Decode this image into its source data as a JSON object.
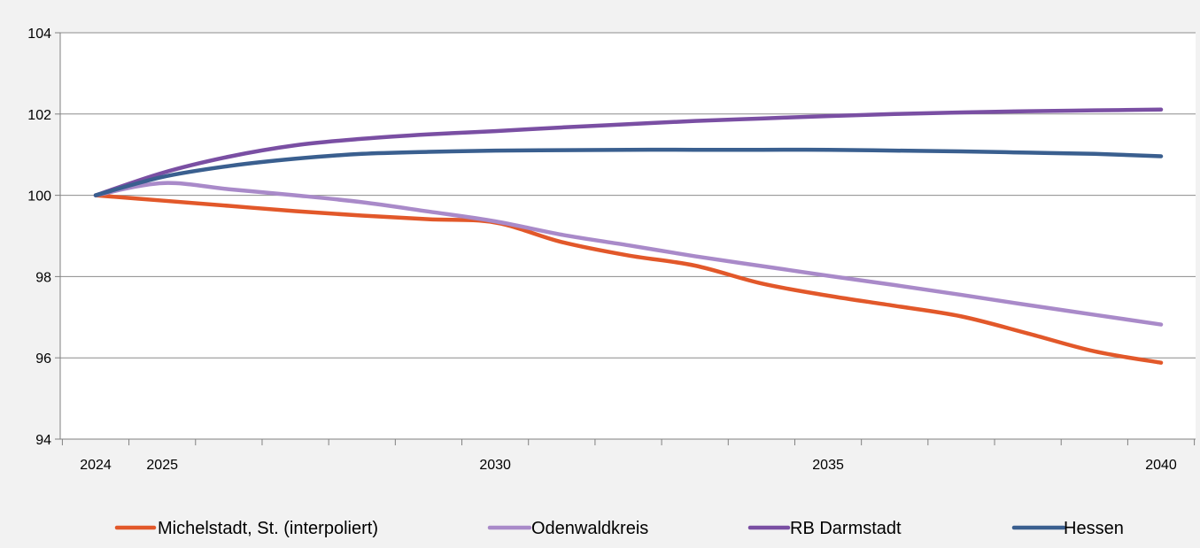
{
  "chart_data": {
    "type": "line",
    "title": "",
    "xlabel": "",
    "ylabel": "",
    "x": [
      2024,
      2025,
      2026,
      2027,
      2028,
      2029,
      2030,
      2031,
      2032,
      2033,
      2034,
      2035,
      2036,
      2037,
      2038,
      2039,
      2040
    ],
    "x_tick_labels": [
      "2024",
      "2025",
      "2030",
      "2035",
      "2040"
    ],
    "x_tick_values": [
      2024,
      2025,
      2030,
      2035,
      2040
    ],
    "ylim": [
      94,
      104
    ],
    "y_ticks": [
      94,
      96,
      98,
      100,
      102,
      104
    ],
    "grid": "horizontal",
    "legend_position": "bottom",
    "series": [
      {
        "name": "Michelstadt, St. (interpoliert)",
        "color": "#e2582a",
        "values": [
          100.0,
          99.87,
          99.74,
          99.61,
          99.5,
          99.41,
          99.33,
          98.85,
          98.52,
          98.27,
          97.83,
          97.53,
          97.28,
          97.02,
          96.6,
          96.16,
          95.88
        ]
      },
      {
        "name": "Odenwaldkreis",
        "color": "#a98ac9",
        "values": [
          100.0,
          100.3,
          100.15,
          100.0,
          99.83,
          99.6,
          99.36,
          99.03,
          98.77,
          98.5,
          98.26,
          98.02,
          97.79,
          97.55,
          97.3,
          97.06,
          96.82
        ]
      },
      {
        "name": "RB Darmstadt",
        "color": "#7a4fa3",
        "values": [
          100.0,
          100.55,
          100.95,
          101.23,
          101.39,
          101.5,
          101.58,
          101.67,
          101.75,
          101.83,
          101.89,
          101.95,
          102.0,
          102.04,
          102.07,
          102.09,
          102.11
        ]
      },
      {
        "name": "Hessen",
        "color": "#3a5f8f",
        "values": [
          100.0,
          100.45,
          100.72,
          100.9,
          101.02,
          101.07,
          101.1,
          101.11,
          101.12,
          101.12,
          101.12,
          101.12,
          101.1,
          101.08,
          101.05,
          101.02,
          100.96
        ]
      }
    ]
  }
}
